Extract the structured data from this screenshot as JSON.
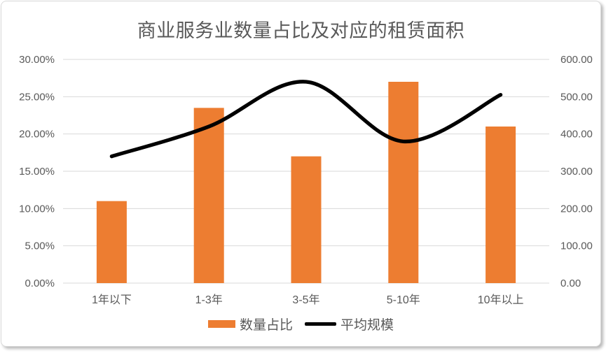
{
  "window": {
    "background": "#FFFFFF",
    "frame_border_color": "#D9D9D9"
  },
  "chart_data": {
    "type": "combo",
    "title": "商业服务业数量占比及对应的租赁面积",
    "title_color": "#595959",
    "categories": [
      "1年以下",
      "1-3年",
      "3-5年",
      "5-10年",
      "10年以上"
    ],
    "series": [
      {
        "name": "数量占比",
        "type": "bar",
        "axis": "left",
        "color": "#ED7D31",
        "values": [
          11.0,
          23.5,
          17.0,
          27.0,
          21.0
        ],
        "value_unit": "%"
      },
      {
        "name": "平均规模",
        "type": "line",
        "axis": "right",
        "color": "#000000",
        "smooth": true,
        "stroke_width": 5.3,
        "values": [
          340,
          420,
          540,
          380,
          505
        ]
      }
    ],
    "left_axis": {
      "min": 0,
      "max": 30,
      "step": 5,
      "tick_labels": [
        "0.00%",
        "5.00%",
        "10.00%",
        "15.00%",
        "20.00%",
        "25.00%",
        "30.00%"
      ],
      "label_color": "#595959"
    },
    "right_axis": {
      "min": 0,
      "max": 600,
      "step": 100,
      "tick_labels": [
        "0.00",
        "100.00",
        "200.00",
        "300.00",
        "400.00",
        "500.00",
        "600.00"
      ],
      "label_color": "#595959"
    },
    "x_axis": {
      "label_color": "#595959"
    },
    "gridlines": {
      "horizontal": true,
      "color": "#D9D9D9"
    },
    "legend": {
      "position": "bottom"
    }
  }
}
